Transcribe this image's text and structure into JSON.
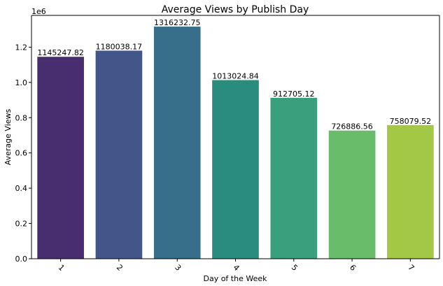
{
  "chart_data": {
    "type": "bar",
    "title": "Average Views by Publish Day",
    "xlabel": "Day of the Week",
    "ylabel": "Average Views",
    "y_offset_label": "1e6",
    "categories": [
      "1",
      "2",
      "3",
      "4",
      "5",
      "6",
      "7"
    ],
    "values": [
      1145247.82,
      1180038.17,
      1316232.75,
      1013024.84,
      912705.12,
      726886.56,
      758079.52
    ],
    "data_labels": [
      "1145247.82",
      "1180038.17",
      "1316232.75",
      "1013024.84",
      "912705.12",
      "726886.56",
      "758079.52"
    ],
    "ylim": [
      0,
      1380000
    ],
    "y_ticks": [
      0,
      200000,
      400000,
      600000,
      800000,
      1000000,
      1200000
    ],
    "y_tick_labels": [
      "0.0",
      "0.2",
      "0.4",
      "0.6",
      "0.8",
      "1.0",
      "1.2"
    ],
    "grid": false,
    "legend": "none",
    "colors": [
      "#482e6f",
      "#43568a",
      "#376e8a",
      "#2a8b7f",
      "#3a9f7c",
      "#69bd6a",
      "#a3c845"
    ]
  }
}
